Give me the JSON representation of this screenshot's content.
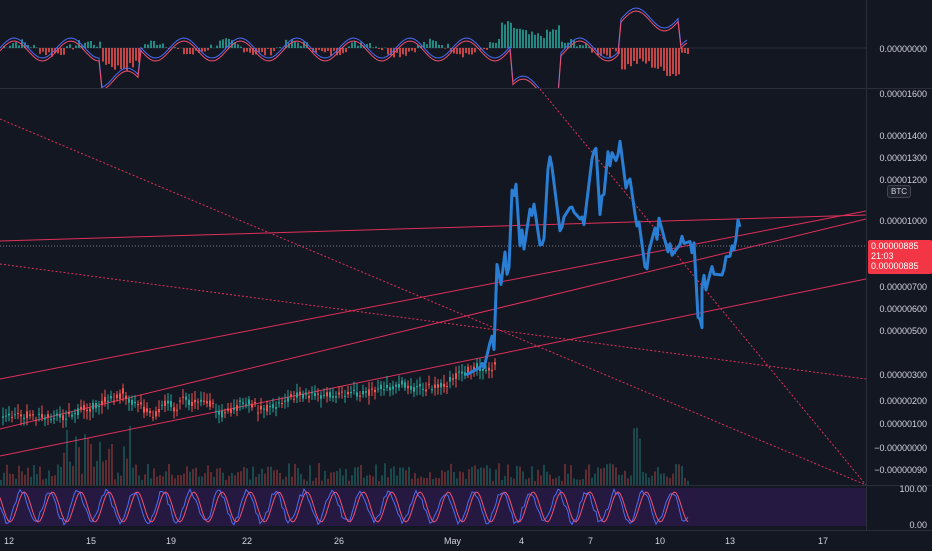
{
  "macd_axis": {
    "label": "0.00000000"
  },
  "price_axis": {
    "unit_badge": "BTC",
    "ticks": [
      "0.00001600",
      "0.00001400",
      "0.00001300",
      "0.00001200",
      "0.00001000",
      "0.00000885",
      "0.00000700",
      "0.00000600",
      "0.00000500",
      "0.00000300",
      "0.00000200",
      "0.00000100",
      "−0.00000000",
      "−0.00000090"
    ],
    "last_price": "0.00000885",
    "countdown": "21:03",
    "price_label_2": "0.00000885"
  },
  "stoch_axis": {
    "top": "100.00",
    "bottom": "0.00"
  },
  "x_axis": {
    "labels": [
      "12",
      "15",
      "19",
      "22",
      "26",
      "May",
      "4",
      "7",
      "10",
      "13",
      "17"
    ]
  },
  "colors": {
    "background": "#131722",
    "price_line": "#2a7fd4",
    "trendline": "#e0305a",
    "candle_up": "#26a69a",
    "candle_down": "#ef5350",
    "stoch_bg": "#2b1a4a"
  }
}
